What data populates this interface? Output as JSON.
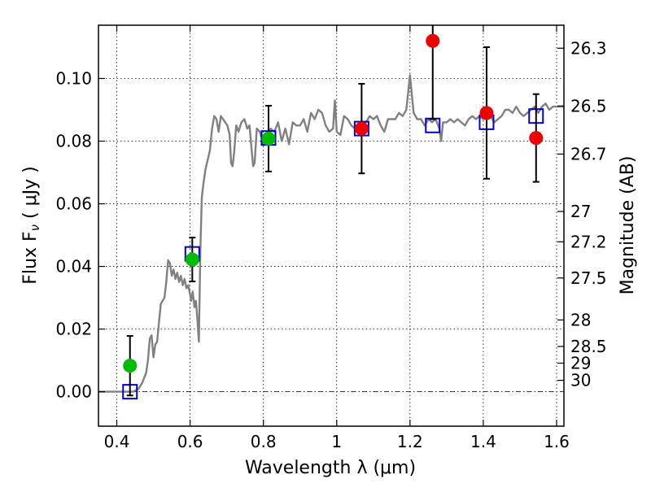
{
  "chart_data": {
    "type": "scatter",
    "title": "",
    "xlabel": "Wavelength  λ (μm)",
    "ylabel": "Flux  F",
    "ylabel_subscript": "ν",
    "ylabel_unit": "  ( μJy )",
    "ylabel_right": "Magnitude (AB)",
    "xlim": [
      0.35,
      1.62
    ],
    "ylim": [
      -0.011,
      0.117
    ],
    "grid": true,
    "x_ticks": [
      {
        "v": 0.4,
        "label": "0.4"
      },
      {
        "v": 0.6,
        "label": "0.6"
      },
      {
        "v": 0.8,
        "label": "0.8"
      },
      {
        "v": 1.0,
        "label": "1"
      },
      {
        "v": 1.2,
        "label": "1.2"
      },
      {
        "v": 1.4,
        "label": "1.4"
      },
      {
        "v": 1.6,
        "label": "1.6"
      }
    ],
    "y_ticks": [
      {
        "v": 0.0,
        "label": "0.00"
      },
      {
        "v": 0.02,
        "label": "0.02"
      },
      {
        "v": 0.04,
        "label": "0.04"
      },
      {
        "v": 0.06,
        "label": "0.06"
      },
      {
        "v": 0.08,
        "label": "0.08"
      },
      {
        "v": 0.1,
        "label": "0.10"
      }
    ],
    "mag_ticks": [
      {
        "mag": 26.3,
        "label": "26.3"
      },
      {
        "mag": 26.5,
        "label": "26.5"
      },
      {
        "mag": 26.7,
        "label": "26.7"
      },
      {
        "mag": 27.0,
        "label": "27"
      },
      {
        "mag": 27.2,
        "label": "27.2"
      },
      {
        "mag": 27.5,
        "label": "27.5"
      },
      {
        "mag": 28.0,
        "label": "28"
      },
      {
        "mag": 28.5,
        "label": "28.5"
      },
      {
        "mag": 29.0,
        "label": "29"
      },
      {
        "mag": 30.0,
        "label": "30"
      }
    ],
    "series": [
      {
        "kind": "line",
        "color": "#808080",
        "points": [
          [
            0.35,
            0.0
          ],
          [
            0.445,
            0.0
          ],
          [
            0.46,
            0.001
          ],
          [
            0.47,
            0.003
          ],
          [
            0.48,
            0.006
          ],
          [
            0.485,
            0.01
          ],
          [
            0.49,
            0.017
          ],
          [
            0.495,
            0.018
          ],
          [
            0.5,
            0.011
          ],
          [
            0.505,
            0.015
          ],
          [
            0.51,
            0.016
          ],
          [
            0.515,
            0.022
          ],
          [
            0.52,
            0.028
          ],
          [
            0.525,
            0.029
          ],
          [
            0.53,
            0.03
          ],
          [
            0.535,
            0.035
          ],
          [
            0.54,
            0.042
          ],
          [
            0.545,
            0.041
          ],
          [
            0.55,
            0.037
          ],
          [
            0.555,
            0.039
          ],
          [
            0.56,
            0.036
          ],
          [
            0.565,
            0.038
          ],
          [
            0.57,
            0.035
          ],
          [
            0.575,
            0.037
          ],
          [
            0.58,
            0.034
          ],
          [
            0.585,
            0.036
          ],
          [
            0.59,
            0.033
          ],
          [
            0.595,
            0.034
          ],
          [
            0.6,
            0.031
          ],
          [
            0.603,
            0.029
          ],
          [
            0.607,
            0.032
          ],
          [
            0.612,
            0.027
          ],
          [
            0.616,
            0.029
          ],
          [
            0.62,
            0.023
          ],
          [
            0.624,
            0.016
          ],
          [
            0.628,
            0.045
          ],
          [
            0.632,
            0.062
          ],
          [
            0.636,
            0.066
          ],
          [
            0.642,
            0.071
          ],
          [
            0.648,
            0.074
          ],
          [
            0.654,
            0.077
          ],
          [
            0.66,
            0.084
          ],
          [
            0.666,
            0.088
          ],
          [
            0.672,
            0.087
          ],
          [
            0.678,
            0.083
          ],
          [
            0.684,
            0.088
          ],
          [
            0.69,
            0.087
          ],
          [
            0.696,
            0.086
          ],
          [
            0.702,
            0.085
          ],
          [
            0.708,
            0.082
          ],
          [
            0.712,
            0.073
          ],
          [
            0.716,
            0.072
          ],
          [
            0.72,
            0.076
          ],
          [
            0.726,
            0.085
          ],
          [
            0.732,
            0.083
          ],
          [
            0.74,
            0.086
          ],
          [
            0.748,
            0.087
          ],
          [
            0.756,
            0.084
          ],
          [
            0.762,
            0.085
          ],
          [
            0.768,
            0.077
          ],
          [
            0.772,
            0.072
          ],
          [
            0.776,
            0.073
          ],
          [
            0.782,
            0.084
          ],
          [
            0.79,
            0.083
          ],
          [
            0.8,
            0.079
          ],
          [
            0.81,
            0.081
          ],
          [
            0.82,
            0.084
          ],
          [
            0.83,
            0.083
          ],
          [
            0.84,
            0.086
          ],
          [
            0.85,
            0.08
          ],
          [
            0.86,
            0.084
          ],
          [
            0.87,
            0.079
          ],
          [
            0.88,
            0.086
          ],
          [
            0.89,
            0.085
          ],
          [
            0.9,
            0.085
          ],
          [
            0.91,
            0.087
          ],
          [
            0.92,
            0.083
          ],
          [
            0.93,
            0.089
          ],
          [
            0.94,
            0.087
          ],
          [
            0.95,
            0.09
          ],
          [
            0.96,
            0.089
          ],
          [
            0.97,
            0.085
          ],
          [
            0.98,
            0.083
          ],
          [
            0.99,
            0.084
          ],
          [
            0.995,
            0.093
          ],
          [
            1.0,
            0.083
          ],
          [
            1.01,
            0.082
          ],
          [
            1.02,
            0.088
          ],
          [
            1.03,
            0.087
          ],
          [
            1.04,
            0.085
          ],
          [
            1.05,
            0.084
          ],
          [
            1.06,
            0.085
          ],
          [
            1.07,
            0.086
          ],
          [
            1.08,
            0.086
          ],
          [
            1.09,
            0.088
          ],
          [
            1.1,
            0.087
          ],
          [
            1.11,
            0.088
          ],
          [
            1.12,
            0.085
          ],
          [
            1.13,
            0.083
          ],
          [
            1.14,
            0.087
          ],
          [
            1.15,
            0.087
          ],
          [
            1.16,
            0.087
          ],
          [
            1.17,
            0.089
          ],
          [
            1.18,
            0.088
          ],
          [
            1.19,
            0.09
          ],
          [
            1.2,
            0.101
          ],
          [
            1.21,
            0.089
          ],
          [
            1.22,
            0.087
          ],
          [
            1.23,
            0.087
          ],
          [
            1.24,
            0.085
          ],
          [
            1.25,
            0.087
          ],
          [
            1.26,
            0.086
          ],
          [
            1.27,
            0.087
          ],
          [
            1.28,
            0.084
          ],
          [
            1.285,
            0.08
          ],
          [
            1.29,
            0.086
          ],
          [
            1.3,
            0.086
          ],
          [
            1.31,
            0.087
          ],
          [
            1.32,
            0.086
          ],
          [
            1.33,
            0.087
          ],
          [
            1.34,
            0.086
          ],
          [
            1.35,
            0.085
          ],
          [
            1.36,
            0.087
          ],
          [
            1.37,
            0.088
          ],
          [
            1.38,
            0.087
          ],
          [
            1.39,
            0.088
          ],
          [
            1.4,
            0.087
          ],
          [
            1.41,
            0.088
          ],
          [
            1.42,
            0.088
          ],
          [
            1.43,
            0.086
          ],
          [
            1.44,
            0.087
          ],
          [
            1.45,
            0.088
          ],
          [
            1.46,
            0.09
          ],
          [
            1.47,
            0.09
          ],
          [
            1.48,
            0.089
          ],
          [
            1.49,
            0.091
          ],
          [
            1.5,
            0.089
          ],
          [
            1.51,
            0.088
          ],
          [
            1.52,
            0.089
          ],
          [
            1.53,
            0.09
          ],
          [
            1.54,
            0.091
          ],
          [
            1.55,
            0.089
          ],
          [
            1.56,
            0.091
          ],
          [
            1.57,
            0.092
          ],
          [
            1.58,
            0.09
          ],
          [
            1.59,
            0.091
          ],
          [
            1.6,
            0.091
          ],
          [
            1.62,
            0.091
          ]
        ]
      },
      {
        "kind": "squares",
        "color": "#0000cc",
        "points": [
          {
            "x": 0.436,
            "y": 0.0
          },
          {
            "x": 0.606,
            "y": 0.044
          },
          {
            "x": 0.814,
            "y": 0.081
          },
          {
            "x": 1.068,
            "y": 0.084
          },
          {
            "x": 1.262,
            "y": 0.085
          },
          {
            "x": 1.409,
            "y": 0.086
          },
          {
            "x": 1.544,
            "y": 0.088
          }
        ]
      },
      {
        "kind": "circles",
        "color": "#00bb00",
        "points": [
          {
            "x": 0.436,
            "y": 0.0083,
            "yerr": 0.0095
          },
          {
            "x": 0.606,
            "y": 0.0422,
            "yerr": 0.007
          },
          {
            "x": 0.814,
            "y": 0.0808,
            "yerr": 0.0105
          }
        ]
      },
      {
        "kind": "circles",
        "color": "#ee0000",
        "points": [
          {
            "x": 1.068,
            "y": 0.084,
            "yerr": 0.0143
          },
          {
            "x": 1.262,
            "y": 0.112,
            "yerr": 0.025
          },
          {
            "x": 1.409,
            "y": 0.089,
            "yerr": 0.021
          },
          {
            "x": 1.544,
            "y": 0.081,
            "yerr": 0.014
          }
        ]
      }
    ]
  }
}
